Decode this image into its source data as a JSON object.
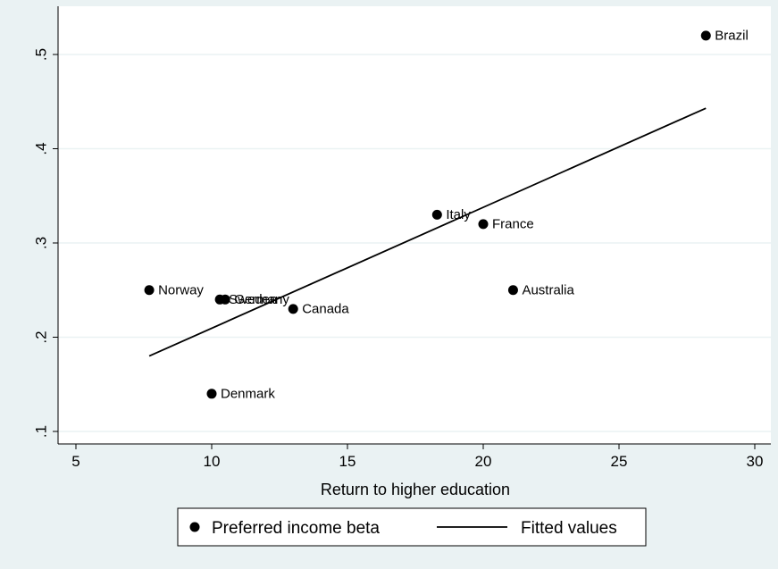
{
  "chart_data": {
    "type": "scatter",
    "title": "",
    "xlabel": "Return to higher education",
    "ylabel": "",
    "xlim": [
      5,
      30
    ],
    "ylim": [
      0.1,
      0.5
    ],
    "x_ticks": [
      5,
      10,
      15,
      20,
      25,
      30
    ],
    "x_tick_labels": [
      "5",
      "10",
      "15",
      "20",
      "25",
      "30"
    ],
    "y_ticks": [
      0.1,
      0.2,
      0.3,
      0.4,
      0.5
    ],
    "y_tick_labels": [
      ".1",
      ".2",
      ".3",
      ".4",
      ".5"
    ],
    "grid": "horizontal",
    "legend_position": "bottom",
    "series": [
      {
        "name": "Preferred income beta",
        "kind": "scatter",
        "color": "#000000",
        "points": [
          {
            "label": "Brazil",
            "x": 28.2,
            "y": 0.52
          },
          {
            "label": "Italy",
            "x": 18.3,
            "y": 0.33
          },
          {
            "label": "France",
            "x": 20.0,
            "y": 0.32
          },
          {
            "label": "Norway",
            "x": 7.7,
            "y": 0.25
          },
          {
            "label": "Australia",
            "x": 21.1,
            "y": 0.25
          },
          {
            "label": "Sweden",
            "x": 10.3,
            "y": 0.24
          },
          {
            "label": "Germany",
            "x": 10.5,
            "y": 0.24
          },
          {
            "label": "Canada",
            "x": 13.0,
            "y": 0.23
          },
          {
            "label": "Denmark",
            "x": 10.0,
            "y": 0.14
          }
        ]
      },
      {
        "name": "Fitted values",
        "kind": "line",
        "color": "#000000",
        "points": [
          {
            "x": 7.7,
            "y": 0.18
          },
          {
            "x": 28.2,
            "y": 0.443
          }
        ]
      }
    ]
  }
}
